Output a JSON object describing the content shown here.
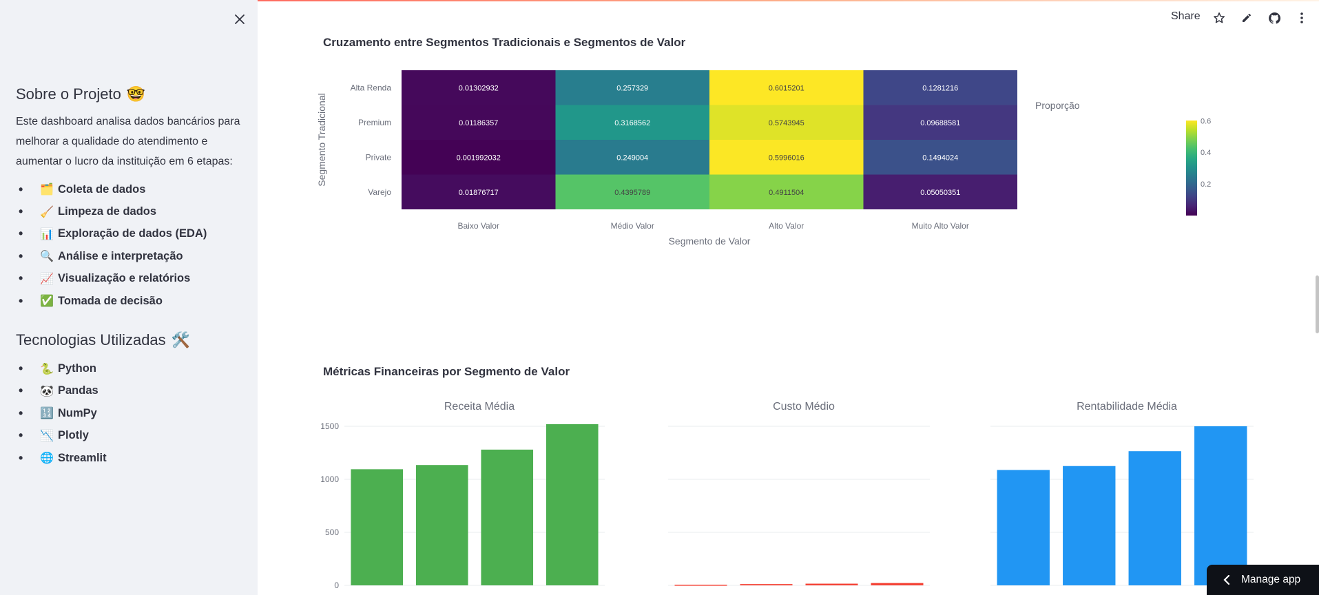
{
  "sidebar": {
    "about_title": "Sobre o Projeto",
    "about_emoji": "🤓",
    "about_text": "Este dashboard analisa dados bancários para melhorar a qualidade do atendimento e aumentar o lucro da instituição em 6 etapas:",
    "steps": [
      {
        "emoji": "🗂️",
        "label": "Coleta de dados"
      },
      {
        "emoji": "🧹",
        "label": "Limpeza de dados"
      },
      {
        "emoji": "📊",
        "label": "Exploração de dados (EDA)"
      },
      {
        "emoji": "🔍",
        "label": "Análise e interpretação"
      },
      {
        "emoji": "📈",
        "label": "Visualização e relatórios"
      },
      {
        "emoji": "✅",
        "label": "Tomada de decisão"
      }
    ],
    "tech_title": "Tecnologias Utilizadas",
    "tech_emoji": "🛠️",
    "techs": [
      {
        "emoji": "🐍",
        "label": "Python"
      },
      {
        "emoji": "🐼",
        "label": "Pandas"
      },
      {
        "emoji": "🔢",
        "label": "NumPy"
      },
      {
        "emoji": "📉",
        "label": "Plotly"
      },
      {
        "emoji": "🌐",
        "label": "Streamlit"
      }
    ]
  },
  "toolbar": {
    "share_label": "Share"
  },
  "main": {
    "heatmap_title": "Cruzamento entre Segmentos Tradicionais e Segmentos de Valor",
    "metrics_title": "Métricas Financeiras por Segmento de Valor"
  },
  "manage_app_label": "Manage app",
  "colors": {
    "green": "#4caf50",
    "red": "#f44336",
    "blue": "#2196f3",
    "accent": "#ff4b4b"
  },
  "chart_data": [
    {
      "type": "heatmap",
      "xlabel": "Segmento de Valor",
      "ylabel": "Segmento Tradicional",
      "x": [
        "Baixo Valor",
        "Médio Valor",
        "Alto Valor",
        "Muito Alto Valor"
      ],
      "y": [
        "Alta Renda",
        "Premium",
        "Private",
        "Varejo"
      ],
      "z": [
        [
          "0.01302932",
          "0.257329",
          "0.6015201",
          "0.1281216"
        ],
        [
          "0.01186357",
          "0.3168562",
          "0.5743945",
          "0.09688581"
        ],
        [
          "0.001992032",
          "0.249004",
          "0.5996016",
          "0.1494024"
        ],
        [
          "0.01876717",
          "0.4395789",
          "0.4911504",
          "0.05050351"
        ]
      ],
      "colorbar_title": "Proporção",
      "colorbar_ticks": [
        "0.6",
        "0.4",
        "0.2"
      ],
      "colorscale": "Viridis",
      "zrange": [
        0,
        0.6015201
      ]
    },
    {
      "type": "bar",
      "title": "Receita Média",
      "values": [
        1095,
        1135,
        1280,
        1520
      ],
      "ylim": [
        0,
        1500
      ],
      "yticks": [
        "1500",
        "1000",
        "500",
        "0"
      ],
      "color": "#4caf50"
    },
    {
      "type": "bar",
      "title": "Custo Médio",
      "values": [
        6,
        12,
        16,
        22
      ],
      "ylim": [
        0,
        1500
      ],
      "color": "#f44336"
    },
    {
      "type": "bar",
      "title": "Rentabilidade Média",
      "values": [
        1088,
        1125,
        1265,
        1500
      ],
      "ylim": [
        0,
        1500
      ],
      "color": "#2196f3"
    }
  ]
}
